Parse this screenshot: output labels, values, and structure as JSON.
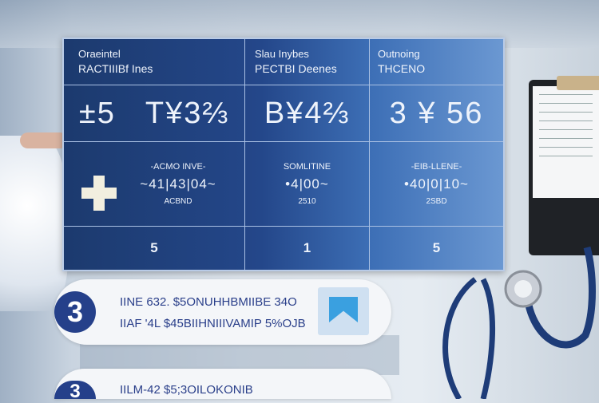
{
  "table": {
    "headers": [
      {
        "line1": "Oraeintel",
        "line2": "RACTIIIBf Ines"
      },
      {
        "line1": "Slau Inybes",
        "line2": "PECTBI Deenes"
      },
      {
        "line1": "Outnoing",
        "line2": "THCENO"
      }
    ],
    "big_values": [
      "±5   T¥3⅔",
      "B¥4⅔",
      "3 ¥ 56"
    ],
    "details": [
      {
        "label": "-ACMO INVE-",
        "value": "~41|43|04~",
        "sub": "ACBND"
      },
      {
        "label": "SOMLITINE",
        "value": "•4|00~",
        "sub": "2510"
      },
      {
        "label": "-EIB-LLENE-",
        "value": "•40|0|10~",
        "sub": "2SBD"
      }
    ],
    "counts": [
      "5",
      "1",
      "5"
    ],
    "colors": {
      "dark": "#1c3a6e",
      "light": "#6b98d2"
    }
  },
  "cards": [
    {
      "badge": "3",
      "lines": [
        "IINE 632.   $5ONUHHBMIIBE 34O",
        "IIAF '4L   $45BIIHNIIIVAMIP 5%OJB"
      ],
      "icon": "bookmark-image-icon"
    },
    {
      "badge": "3",
      "lines": [
        "IILM-42   $5;3OILOKONIB"
      ]
    }
  ],
  "accent": "#25408a"
}
